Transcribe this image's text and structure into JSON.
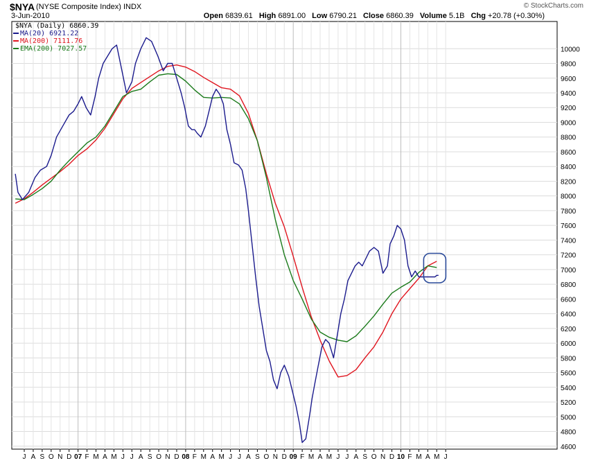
{
  "header": {
    "symbol": "$NYA",
    "description": "(NYSE Composite Index)",
    "exchange": "INDX",
    "date": "3-Jun-2010",
    "credit": "© StockCharts.com",
    "open_label": "Open",
    "open": "6839.61",
    "high_label": "High",
    "high": "6891.00",
    "low_label": "Low",
    "low": "6790.21",
    "close_label": "Close",
    "close": "6860.39",
    "volume_label": "Volume",
    "volume": "5.1B",
    "chg_label": "Chg",
    "chg": "+20.78 (+0.30%)"
  },
  "chart_data": {
    "type": "line",
    "ylim": [
      4560,
      10370
    ],
    "y_ticks": [
      4600,
      4800,
      5000,
      5200,
      5400,
      5600,
      5800,
      6000,
      6200,
      6400,
      6600,
      6800,
      7000,
      7200,
      7400,
      7600,
      7800,
      8000,
      8200,
      8400,
      8600,
      8800,
      9000,
      9200,
      9400,
      9600,
      9800,
      10000
    ],
    "x_tick_labels": [
      "J",
      "A",
      "S",
      "O",
      "N",
      "D",
      "07",
      "F",
      "M",
      "A",
      "M",
      "J",
      "J",
      "A",
      "S",
      "O",
      "N",
      "D",
      "08",
      "F",
      "M",
      "A",
      "M",
      "J",
      "J",
      "A",
      "S",
      "O",
      "N",
      "D",
      "09",
      "F",
      "M",
      "A",
      "M",
      "J",
      "J",
      "A",
      "S",
      "O",
      "N",
      "D",
      "10",
      "F",
      "M",
      "A",
      "M",
      "J"
    ],
    "year_label_positions": [
      6,
      18,
      30,
      42
    ],
    "x_range_months": [
      0,
      48
    ],
    "grid": true,
    "legend": "top-left",
    "colors": {
      "price": "#1a1a8c",
      "ma200": "#e0141e",
      "ema200": "#1a7a1a"
    },
    "legend_entries": [
      {
        "label": "$NYA (Daily) 6860.39",
        "color": "#000000",
        "swatch": false
      },
      {
        "label": "MA(20) 6921.22",
        "color": "#1a1a8c",
        "swatch": true
      },
      {
        "label": "MA(200) 7111.76",
        "color": "#e0141e",
        "swatch": true
      },
      {
        "label": "EMA(200) 7027.57",
        "color": "#1a7a1a",
        "swatch": true
      }
    ],
    "series": [
      {
        "name": "MA(20)",
        "color": "#1a1a8c",
        "x": [
          0,
          0.3,
          0.8,
          1.5,
          2.2,
          2.8,
          3.5,
          4,
          4.6,
          5.3,
          6,
          6.5,
          7,
          7.4,
          7.9,
          8.4,
          8.9,
          9.3,
          9.8,
          10.3,
          10.8,
          11.3,
          11.9,
          12.4,
          13,
          13.4,
          14,
          14.6,
          15.2,
          15.9,
          16.5,
          17,
          17.5,
          18,
          18.5,
          18.9,
          19.3,
          19.7,
          20,
          20.3,
          20.7,
          21.2,
          21.6,
          22,
          22.4,
          22.8,
          23.2,
          23.6,
          24,
          24.4,
          24.9,
          25.3,
          25.7,
          26,
          26.4,
          26.8,
          27.2,
          27.6,
          28,
          28.4,
          28.8,
          29.2,
          29.6,
          30,
          30.5,
          30.9,
          31.3,
          31.7,
          32,
          32.4,
          32.8,
          33.1,
          33.4,
          33.8,
          34.2,
          34.6,
          35,
          35.5,
          35.9,
          36.3,
          36.7,
          37.1,
          37.5,
          37.9,
          38.3,
          38.7,
          39.1,
          39.5,
          40,
          40.5,
          41,
          41.5,
          41.8,
          42.2,
          42.6,
          43,
          43.4,
          43.8,
          44.2,
          44.6,
          45,
          45.4,
          45.8,
          46.2,
          46.5,
          46.8,
          47,
          47.2
        ],
        "y": [
          8300,
          8050,
          7950,
          8050,
          8250,
          8350,
          8400,
          8550,
          8800,
          8950,
          9100,
          9150,
          9250,
          9350,
          9200,
          9100,
          9350,
          9600,
          9800,
          9900,
          10000,
          10050,
          9700,
          9400,
          9550,
          9800,
          10000,
          10150,
          10100,
          9900,
          9700,
          9800,
          9800,
          9600,
          9400,
          9200,
          8950,
          8900,
          8900,
          8850,
          8800,
          8950,
          9150,
          9350,
          9450,
          9380,
          9250,
          8900,
          8700,
          8450,
          8420,
          8350,
          8100,
          7800,
          7350,
          6900,
          6500,
          6200,
          5900,
          5750,
          5500,
          5380,
          5600,
          5700,
          5550,
          5350,
          5150,
          4900,
          4650,
          4700,
          5000,
          5250,
          5450,
          5700,
          5950,
          6050,
          6000,
          5800,
          6100,
          6400,
          6600,
          6850,
          6950,
          7050,
          7100,
          7050,
          7150,
          7250,
          7300,
          7250,
          6950,
          7050,
          7350,
          7450,
          7600,
          7550,
          7400,
          7050,
          6900,
          6980,
          6900,
          6900,
          6900,
          6900,
          6900,
          6900,
          6921,
          6921
        ],
        "trim": 0
      },
      {
        "name": "MA(200)",
        "color": "#e0141e",
        "x": [
          0,
          1,
          2,
          3,
          4,
          5,
          6,
          7,
          8,
          9,
          10,
          11,
          12,
          13,
          14,
          15,
          16,
          17,
          18,
          19,
          20,
          21,
          22,
          23,
          24,
          25,
          26,
          27,
          28,
          29,
          30,
          31,
          32,
          33,
          34,
          35,
          36,
          37,
          38,
          39,
          40,
          41,
          42,
          43,
          44,
          45,
          46,
          47
        ],
        "y": [
          7900,
          7960,
          8050,
          8150,
          8240,
          8330,
          8430,
          8550,
          8640,
          8760,
          8920,
          9120,
          9320,
          9460,
          9540,
          9620,
          9700,
          9760,
          9780,
          9750,
          9690,
          9610,
          9540,
          9470,
          9450,
          9360,
          9120,
          8750,
          8300,
          7900,
          7580,
          7180,
          6760,
          6360,
          6040,
          5760,
          5540,
          5560,
          5640,
          5800,
          5950,
          6150,
          6400,
          6600,
          6740,
          6880,
          7050,
          7112
        ]
      },
      {
        "name": "EMA(200)",
        "color": "#1a7a1a",
        "x": [
          0,
          1,
          2,
          3,
          4,
          5,
          6,
          7,
          8,
          9,
          10,
          11,
          12,
          13,
          14,
          15,
          16,
          17,
          18,
          19,
          20,
          21,
          22,
          23,
          24,
          25,
          26,
          27,
          28,
          29,
          30,
          31,
          32,
          33,
          34,
          35,
          36,
          37,
          38,
          39,
          40,
          41,
          42,
          43,
          44,
          45,
          46,
          47
        ],
        "y": [
          7960,
          7950,
          8020,
          8100,
          8200,
          8350,
          8480,
          8600,
          8720,
          8800,
          8950,
          9150,
          9350,
          9420,
          9450,
          9550,
          9640,
          9660,
          9650,
          9560,
          9440,
          9340,
          9330,
          9340,
          9330,
          9250,
          9050,
          8750,
          8250,
          7680,
          7200,
          6850,
          6600,
          6330,
          6150,
          6080,
          6040,
          6020,
          6100,
          6230,
          6370,
          6530,
          6680,
          6760,
          6830,
          6960,
          7050,
          7028
        ]
      }
    ]
  }
}
